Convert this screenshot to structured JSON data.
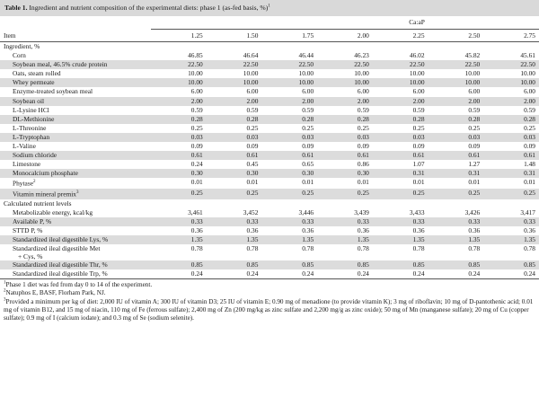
{
  "title": {
    "label": "Table 1.",
    "text": "Ingredient and nutrient composition of the experimental diets: phase 1 (as-fed basis, %)",
    "footnote_mark": "1"
  },
  "header": {
    "group_label": "Ca:aP",
    "item_label": "Item",
    "columns": [
      "1.25",
      "1.50",
      "1.75",
      "2.00",
      "2.25",
      "2.50",
      "2.75"
    ]
  },
  "sections": {
    "ingredient_label": "Ingredient, %",
    "calculated_label": "Calculated nutrient levels"
  },
  "ingredients": [
    {
      "name": "Corn",
      "values": [
        "46.85",
        "46.64",
        "46.44",
        "46.23",
        "46.02",
        "45.82",
        "45.61"
      ]
    },
    {
      "name": "Soybean meal, 46.5% crude protein",
      "values": [
        "22.50",
        "22.50",
        "22.50",
        "22.50",
        "22.50",
        "22.50",
        "22.50"
      ]
    },
    {
      "name": "Oats, steam rolled",
      "values": [
        "10.00",
        "10.00",
        "10.00",
        "10.00",
        "10.00",
        "10.00",
        "10.00"
      ]
    },
    {
      "name": "Whey permeate",
      "values": [
        "10.00",
        "10.00",
        "10.00",
        "10.00",
        "10.00",
        "10.00",
        "10.00"
      ]
    },
    {
      "name": "Enzyme-treated soybean meal",
      "values": [
        "6.00",
        "6.00",
        "6.00",
        "6.00",
        "6.00",
        "6.00",
        "6.00"
      ]
    },
    {
      "name": "Soybean oil",
      "values": [
        "2.00",
        "2.00",
        "2.00",
        "2.00",
        "2.00",
        "2.00",
        "2.00"
      ]
    },
    {
      "name": "L-Lysine HCl",
      "values": [
        "0.59",
        "0.59",
        "0.59",
        "0.59",
        "0.59",
        "0.59",
        "0.59"
      ]
    },
    {
      "name": "DL-Methionine",
      "values": [
        "0.28",
        "0.28",
        "0.28",
        "0.28",
        "0.28",
        "0.28",
        "0.28"
      ]
    },
    {
      "name": "L-Threonine",
      "values": [
        "0.25",
        "0.25",
        "0.25",
        "0.25",
        "0.25",
        "0.25",
        "0.25"
      ]
    },
    {
      "name": "L-Tryptophan",
      "values": [
        "0.03",
        "0.03",
        "0.03",
        "0.03",
        "0.03",
        "0.03",
        "0.03"
      ]
    },
    {
      "name": "L-Valine",
      "values": [
        "0.09",
        "0.09",
        "0.09",
        "0.09",
        "0.09",
        "0.09",
        "0.09"
      ]
    },
    {
      "name": "Sodium chloride",
      "values": [
        "0.61",
        "0.61",
        "0.61",
        "0.61",
        "0.61",
        "0.61",
        "0.61"
      ]
    },
    {
      "name": "Limestone",
      "values": [
        "0.24",
        "0.45",
        "0.65",
        "0.86",
        "1.07",
        "1.27",
        "1.48"
      ]
    },
    {
      "name": "Monocalcium phosphate",
      "values": [
        "0.30",
        "0.30",
        "0.30",
        "0.30",
        "0.31",
        "0.31",
        "0.31"
      ]
    },
    {
      "name": "Phytase",
      "mark": "2",
      "values": [
        "0.01",
        "0.01",
        "0.01",
        "0.01",
        "0.01",
        "0.01",
        "0.01"
      ]
    },
    {
      "name": "Vitamin mineral premix",
      "mark": "3",
      "values": [
        "0.25",
        "0.25",
        "0.25",
        "0.25",
        "0.25",
        "0.25",
        "0.25"
      ]
    }
  ],
  "calculated": [
    {
      "name": "Metabolizable energy, kcal/kg",
      "values": [
        "3,461",
        "3,452",
        "3,446",
        "3,439",
        "3,433",
        "3,426",
        "3,417"
      ]
    },
    {
      "name": "Available P, %",
      "values": [
        "0.33",
        "0.33",
        "0.33",
        "0.33",
        "0.33",
        "0.33",
        "0.33"
      ]
    },
    {
      "name": "STTD P, %",
      "values": [
        "0.36",
        "0.36",
        "0.36",
        "0.36",
        "0.36",
        "0.36",
        "0.36"
      ]
    },
    {
      "name": "Standardized ileal digestible Lys, %",
      "values": [
        "1.35",
        "1.35",
        "1.35",
        "1.35",
        "1.35",
        "1.35",
        "1.35"
      ]
    },
    {
      "name": "Standardized ileal digestible Met",
      "name2": "+ Cys, %",
      "values": [
        "0.78",
        "0.78",
        "0.78",
        "0.78",
        "0.78",
        "0.78",
        "0.78"
      ]
    },
    {
      "name": "Standardized ileal digestible Thr, %",
      "values": [
        "0.85",
        "0.85",
        "0.85",
        "0.85",
        "0.85",
        "0.85",
        "0.85"
      ]
    },
    {
      "name": "Standardized ileal digestible Trp, %",
      "values": [
        "0.24",
        "0.24",
        "0.24",
        "0.24",
        "0.24",
        "0.24",
        "0.24"
      ]
    }
  ],
  "footnotes": [
    {
      "mark": "1",
      "text": "Phase 1 diet was fed from day 0 to 14 of the experiment."
    },
    {
      "mark": "2",
      "text": "Natuphos E, BASF, Florham Park, NJ."
    },
    {
      "mark": "3",
      "text": "Provided a minimum per kg of diet: 2,000 IU of vitamin A; 300 IU of vitamin D3; 25 IU of vitamin E; 0.90 mg of menadione (to provide vitamin K); 3 mg of riboflavin; 10 mg of D-pantothenic acid; 0.01 mg of vitamin B12, and 15 mg of niacin, 110 mg of Fe (ferrous sulfate); 2,400 mg of Zn (200 mg/kg as zinc sulfate and 2,200 mg/g as zinc oxide); 50 mg of Mn (manganese sulfate); 20 mg of Cu (copper sulfate); 0.9 mg of I (calcium iodate); and 0.3 mg of Se (sodium selenite)."
    }
  ]
}
